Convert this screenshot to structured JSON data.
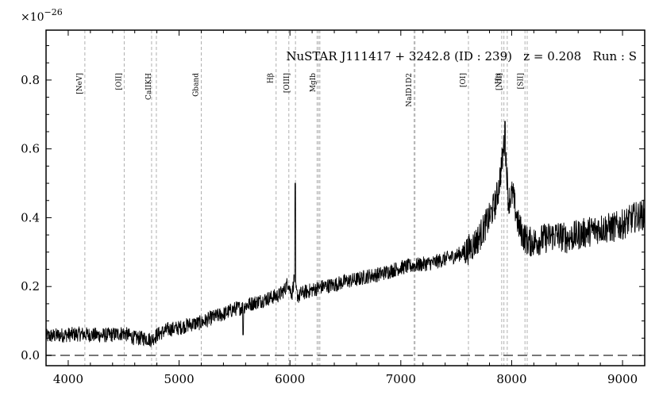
{
  "chart_data": {
    "type": "line",
    "title": "NuSTAR J111417 + 3242.8 (ID : 239)   z = 0.208   Run : S",
    "xlabel": "",
    "ylabel": "",
    "y_scale_label": "×10",
    "y_scale_exponent": "−26",
    "xlim": [
      3800,
      9200
    ],
    "ylim": [
      -0.03,
      0.945
    ],
    "x_ticks": [
      4000,
      5000,
      6000,
      7000,
      8000,
      9000
    ],
    "x_tick_labels": [
      "4000",
      "5000",
      "6000",
      "7000",
      "8000",
      "9000"
    ],
    "y_ticks": [
      0.0,
      0.2,
      0.4,
      0.6,
      0.8
    ],
    "y_tick_labels": [
      "0.0",
      "0.2",
      "0.4",
      "0.6",
      "0.8"
    ],
    "zero_line": {
      "y": 0.0,
      "style": "dashed",
      "color": "#777777"
    },
    "spectrum_color": "#000000",
    "line_marker_color": "#b0b0b0",
    "emission_lines": [
      {
        "label": "[NeV]",
        "x": [
          4150
        ]
      },
      {
        "label": "[OII]",
        "x": [
          4505
        ]
      },
      {
        "label": "CaIIKH",
        "x": [
          4752,
          4795
        ]
      },
      {
        "label": "Gband",
        "x": [
          5200
        ]
      },
      {
        "label": "Hβ",
        "x": [
          5875
        ]
      },
      {
        "label": "[OIII]",
        "x": [
          5990,
          6050
        ]
      },
      {
        "label": "MgIb",
        "x": [
          6245,
          6258,
          6270
        ]
      },
      {
        "label": "NaID1D2",
        "x": [
          7120,
          7128
        ]
      },
      {
        "label": "[OI]",
        "x": [
          7610
        ]
      },
      {
        "label": "Hα",
        "x": [
          7930
        ]
      },
      {
        "label": "[NII]",
        "x": [
          7910,
          7960
        ]
      },
      {
        "label": "[SII]",
        "x": [
          8120,
          8140
        ]
      }
    ],
    "series": [
      {
        "x": [
          3800,
          3900,
          4000,
          4100,
          4200,
          4300,
          4400,
          4500,
          4530,
          4600,
          4700,
          4750,
          4800,
          4900,
          5000,
          5100,
          5200,
          5300,
          5400,
          5500,
          5580,
          5600,
          5700,
          5800,
          5900,
          5950,
          5985,
          6000,
          6020,
          6040,
          6060,
          6080,
          6100,
          6200,
          6300,
          6400,
          6500,
          6600,
          6700,
          6800,
          6900,
          7000,
          7100,
          7200,
          7300,
          7400,
          7500,
          7600,
          7650,
          7700,
          7750,
          7800,
          7850,
          7880,
          7900,
          7920,
          7930,
          7950,
          7970,
          7990,
          8010,
          8030,
          8060,
          8100,
          8150,
          8200,
          8300,
          8400,
          8500,
          8600,
          8700,
          8800,
          8900,
          9000,
          9100,
          9200
        ],
        "y": [
          0.055,
          0.058,
          0.06,
          0.062,
          0.06,
          0.058,
          0.06,
          0.065,
          0.06,
          0.05,
          0.05,
          0.045,
          0.06,
          0.075,
          0.08,
          0.09,
          0.095,
          0.11,
          0.12,
          0.135,
          0.14,
          0.145,
          0.155,
          0.165,
          0.175,
          0.19,
          0.215,
          0.19,
          0.18,
          0.23,
          0.18,
          0.17,
          0.18,
          0.19,
          0.2,
          0.205,
          0.215,
          0.22,
          0.23,
          0.235,
          0.245,
          0.255,
          0.26,
          0.265,
          0.27,
          0.28,
          0.29,
          0.305,
          0.32,
          0.34,
          0.37,
          0.4,
          0.44,
          0.48,
          0.53,
          0.58,
          0.62,
          0.57,
          0.45,
          0.46,
          0.47,
          0.43,
          0.38,
          0.35,
          0.33,
          0.33,
          0.34,
          0.35,
          0.34,
          0.35,
          0.36,
          0.37,
          0.37,
          0.38,
          0.4,
          0.41
        ]
      }
    ],
    "spikes": [
      {
        "x": 6047,
        "y": 0.5
      },
      {
        "x": 7940,
        "y": 0.68
      },
      {
        "x": 5577,
        "y": 0.06
      }
    ],
    "grid": false,
    "legend": "none"
  }
}
